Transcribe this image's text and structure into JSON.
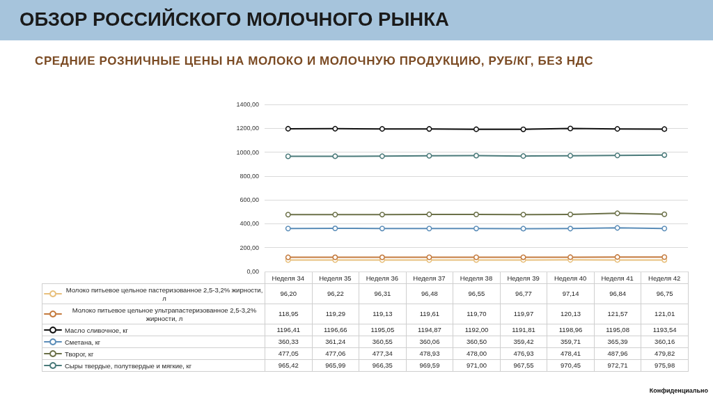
{
  "chart_data": {
    "type": "line",
    "title": "ОБЗОР РОССИЙСКОГО МОЛОЧНОГО РЫНКА",
    "subtitle": "СРЕДНИЕ РОЗНИЧНЫЕ ЦЕНЫ НА МОЛОКО И МОЛОЧНУЮ ПРОДУКЦИЮ, РУБ/КГ, БЕЗ НДС",
    "annotations": [
      "Конфиденциально"
    ],
    "categories": [
      "Неделя 34",
      "Неделя 35",
      "Неделя 36",
      "Неделя 37",
      "Неделя 38",
      "Неделя 39",
      "Неделя 40",
      "Неделя 41",
      "Неделя 42"
    ],
    "series": [
      {
        "name": "Молоко питьевое цельное пастеризованное 2,5-3,2% жирности, л",
        "color": "#e8c07d",
        "values": [
          96.2,
          96.22,
          96.31,
          96.48,
          96.55,
          96.77,
          97.14,
          96.84,
          96.75
        ],
        "value_labels": [
          "96,20",
          "96,22",
          "96,31",
          "96,48",
          "96,55",
          "96,77",
          "97,14",
          "96,84",
          "96,75"
        ]
      },
      {
        "name": "Молоко питьевое цельное ультрапастеризованное 2,5-3,2% жирности, л",
        "color": "#c47a3d",
        "values": [
          118.95,
          119.29,
          119.13,
          119.61,
          119.7,
          119.97,
          120.13,
          121.57,
          121.01
        ],
        "value_labels": [
          "118,95",
          "119,29",
          "119,13",
          "119,61",
          "119,70",
          "119,97",
          "120,13",
          "121,57",
          "121,01"
        ]
      },
      {
        "name": "Масло сливочное, кг",
        "color": "#111111",
        "values": [
          1196.41,
          1196.66,
          1195.05,
          1194.87,
          1192.0,
          1191.81,
          1198.96,
          1195.08,
          1193.54
        ],
        "value_labels": [
          "1196,41",
          "1196,66",
          "1195,05",
          "1194,87",
          "1192,00",
          "1191,81",
          "1198,96",
          "1195,08",
          "1193,54"
        ]
      },
      {
        "name": "Сметана, кг",
        "color": "#5b8db8",
        "values": [
          360.33,
          361.24,
          360.55,
          360.06,
          360.5,
          359.42,
          359.71,
          365.39,
          360.16
        ],
        "value_labels": [
          "360,33",
          "361,24",
          "360,55",
          "360,06",
          "360,50",
          "359,42",
          "359,71",
          "365,39",
          "360,16"
        ]
      },
      {
        "name": "Творог, кг",
        "color": "#6b7048",
        "values": [
          477.05,
          477.06,
          477.34,
          478.93,
          478.0,
          476.93,
          478.41,
          487.96,
          479.82
        ],
        "value_labels": [
          "477,05",
          "477,06",
          "477,34",
          "478,93",
          "478,00",
          "476,93",
          "478,41",
          "487,96",
          "479,82"
        ]
      },
      {
        "name": "Сыры твердые, полутвердые и мягкие, кг",
        "color": "#4a7a7a",
        "values": [
          965.42,
          965.99,
          966.35,
          969.59,
          971.0,
          967.55,
          970.45,
          972.71,
          975.98
        ],
        "value_labels": [
          "965,42",
          "965,99",
          "966,35",
          "969,59",
          "971,00",
          "967,55",
          "970,45",
          "972,71",
          "975,98"
        ]
      }
    ],
    "ylim": [
      0,
      1400
    ],
    "yticks": [
      {
        "value": 0,
        "label": "0,00"
      },
      {
        "value": 200,
        "label": "200,00"
      },
      {
        "value": 400,
        "label": "400,00"
      },
      {
        "value": 600,
        "label": "600,00"
      },
      {
        "value": 800,
        "label": "800,00"
      },
      {
        "value": 1000,
        "label": "1000,00"
      },
      {
        "value": 1200,
        "label": "1200,00"
      },
      {
        "value": 1400,
        "label": "1400,00"
      }
    ],
    "grid": "y",
    "legend": "bottom left",
    "marker": "circle",
    "line_style": "solid"
  }
}
